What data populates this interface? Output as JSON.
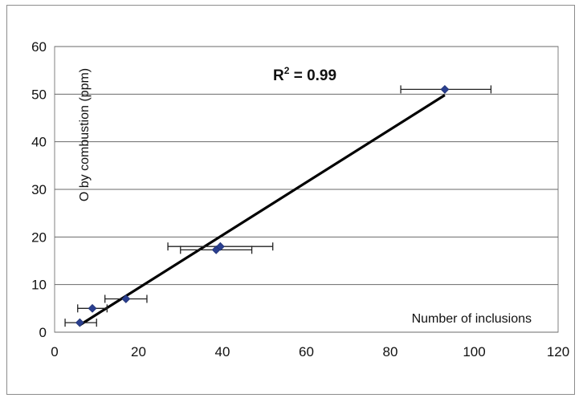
{
  "chart_data": {
    "type": "scatter",
    "xlabel": "Number of inclusions",
    "ylabel": "O by combustion (ppm)",
    "xlim": [
      0,
      120
    ],
    "ylim": [
      0,
      60
    ],
    "x_ticks": [
      "0",
      "20",
      "40",
      "60",
      "80",
      "100",
      "120"
    ],
    "y_ticks": [
      "0",
      "10",
      "20",
      "30",
      "40",
      "50",
      "60"
    ],
    "grid": "horizontal",
    "annotation": {
      "prefix": "R",
      "sup": "2",
      "suffix": " = 0.99"
    },
    "points": [
      {
        "x": 6,
        "y": 2,
        "xerr_low": 2.5,
        "xerr_high": 10
      },
      {
        "x": 9,
        "y": 5,
        "xerr_low": 5.5,
        "xerr_high": 12.5
      },
      {
        "x": 17,
        "y": 7,
        "xerr_low": 12,
        "xerr_high": 22
      },
      {
        "x": 38.5,
        "y": 17.3,
        "xerr_low": 30,
        "xerr_high": 47
      },
      {
        "x": 39.5,
        "y": 18,
        "xerr_low": 27,
        "xerr_high": 52
      },
      {
        "x": 93,
        "y": 51,
        "xerr_low": 82.5,
        "xerr_high": 104
      }
    ],
    "trendline": {
      "x": [
        6,
        93
      ],
      "y": [
        1.5,
        49.8
      ]
    },
    "colors": {
      "marker": "#2a3f8f",
      "trendline": "#000000",
      "grid": "#6a6a6a"
    }
  }
}
